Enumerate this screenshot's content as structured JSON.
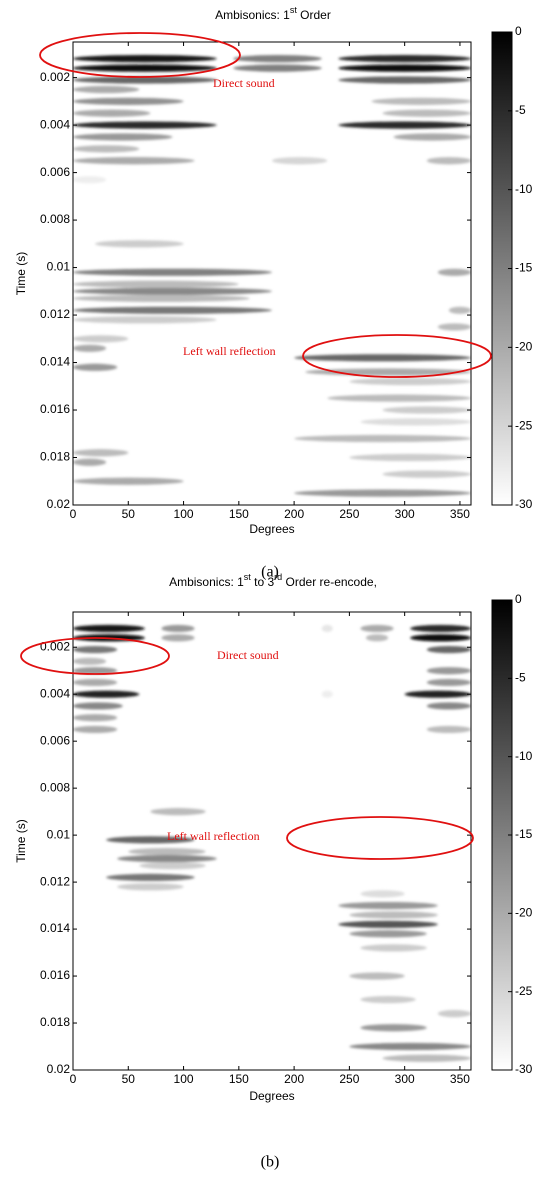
{
  "chart_data": [
    {
      "type": "heatmap",
      "title": [
        "Ambisonics: 1",
        "st",
        " Order"
      ],
      "x_label": "Degrees",
      "y_label": "Time (s)",
      "caption": "(a)",
      "xlim": [
        0,
        360
      ],
      "xticks": [
        0,
        50,
        100,
        150,
        200,
        250,
        300,
        350
      ],
      "ylim": [
        0.0005,
        0.02
      ],
      "yticks": [
        0.002,
        0.004,
        0.006,
        0.008,
        0.01,
        0.012,
        0.014,
        0.016,
        0.018,
        0.02
      ],
      "clim": [
        -30,
        0
      ],
      "cticks": [
        0,
        -5,
        -10,
        -15,
        -20,
        -25,
        -30
      ],
      "colormap": "gray",
      "annotations": [
        "Direct sound",
        "Left wall reflection"
      ],
      "streaks": [
        {
          "time": 0.0012,
          "degrees": [
            0,
            130
          ],
          "value": -3
        },
        {
          "time": 0.0016,
          "degrees": [
            0,
            130
          ],
          "value": -1
        },
        {
          "time": 0.0012,
          "degrees": [
            145,
            225
          ],
          "value": -15
        },
        {
          "time": 0.0016,
          "degrees": [
            145,
            225
          ],
          "value": -15
        },
        {
          "time": 0.0012,
          "degrees": [
            240,
            360
          ],
          "value": -5
        },
        {
          "time": 0.0016,
          "degrees": [
            240,
            360
          ],
          "value": -1
        },
        {
          "time": 0.0021,
          "degrees": [
            0,
            130
          ],
          "value": -12
        },
        {
          "time": 0.0021,
          "degrees": [
            240,
            360
          ],
          "value": -12
        },
        {
          "time": 0.0025,
          "degrees": [
            0,
            60
          ],
          "value": -20
        },
        {
          "time": 0.003,
          "degrees": [
            0,
            100
          ],
          "value": -17
        },
        {
          "time": 0.003,
          "degrees": [
            270,
            360
          ],
          "value": -22
        },
        {
          "time": 0.0035,
          "degrees": [
            0,
            70
          ],
          "value": -20
        },
        {
          "time": 0.0035,
          "degrees": [
            280,
            360
          ],
          "value": -22
        },
        {
          "time": 0.004,
          "degrees": [
            0,
            130
          ],
          "value": -5
        },
        {
          "time": 0.004,
          "degrees": [
            240,
            360
          ],
          "value": -5
        },
        {
          "time": 0.0045,
          "degrees": [
            0,
            90
          ],
          "value": -18
        },
        {
          "time": 0.0045,
          "degrees": [
            290,
            360
          ],
          "value": -20
        },
        {
          "time": 0.005,
          "degrees": [
            0,
            60
          ],
          "value": -22
        },
        {
          "time": 0.0055,
          "degrees": [
            0,
            110
          ],
          "value": -20
        },
        {
          "time": 0.0055,
          "degrees": [
            180,
            230
          ],
          "value": -25
        },
        {
          "time": 0.0055,
          "degrees": [
            320,
            360
          ],
          "value": -22
        },
        {
          "time": 0.0063,
          "degrees": [
            0,
            30
          ],
          "value": -28
        },
        {
          "time": 0.009,
          "degrees": [
            20,
            100
          ],
          "value": -24
        },
        {
          "time": 0.0102,
          "degrees": [
            0,
            180
          ],
          "value": -15
        },
        {
          "time": 0.0107,
          "degrees": [
            0,
            150
          ],
          "value": -22
        },
        {
          "time": 0.011,
          "degrees": [
            0,
            180
          ],
          "value": -16
        },
        {
          "time": 0.0113,
          "degrees": [
            0,
            160
          ],
          "value": -22
        },
        {
          "time": 0.0118,
          "degrees": [
            0,
            180
          ],
          "value": -14
        },
        {
          "time": 0.0122,
          "degrees": [
            0,
            130
          ],
          "value": -24
        },
        {
          "time": 0.0102,
          "degrees": [
            330,
            360
          ],
          "value": -20
        },
        {
          "time": 0.0118,
          "degrees": [
            340,
            360
          ],
          "value": -22
        },
        {
          "time": 0.0125,
          "degrees": [
            330,
            360
          ],
          "value": -22
        },
        {
          "time": 0.013,
          "degrees": [
            0,
            50
          ],
          "value": -24
        },
        {
          "time": 0.0134,
          "degrees": [
            0,
            30
          ],
          "value": -20
        },
        {
          "time": 0.0138,
          "degrees": [
            200,
            360
          ],
          "value": -12
        },
        {
          "time": 0.0142,
          "degrees": [
            0,
            40
          ],
          "value": -18
        },
        {
          "time": 0.0144,
          "degrees": [
            210,
            360
          ],
          "value": -20
        },
        {
          "time": 0.0148,
          "degrees": [
            250,
            360
          ],
          "value": -24
        },
        {
          "time": 0.0155,
          "degrees": [
            230,
            360
          ],
          "value": -22
        },
        {
          "time": 0.016,
          "degrees": [
            280,
            360
          ],
          "value": -24
        },
        {
          "time": 0.0165,
          "degrees": [
            260,
            360
          ],
          "value": -26
        },
        {
          "time": 0.0172,
          "degrees": [
            200,
            360
          ],
          "value": -22
        },
        {
          "time": 0.0178,
          "degrees": [
            0,
            50
          ],
          "value": -22
        },
        {
          "time": 0.018,
          "degrees": [
            250,
            360
          ],
          "value": -24
        },
        {
          "time": 0.0182,
          "degrees": [
            0,
            30
          ],
          "value": -20
        },
        {
          "time": 0.0187,
          "degrees": [
            280,
            360
          ],
          "value": -24
        },
        {
          "time": 0.019,
          "degrees": [
            0,
            100
          ],
          "value": -20
        },
        {
          "time": 0.0195,
          "degrees": [
            200,
            360
          ],
          "value": -18
        }
      ]
    },
    {
      "type": "heatmap",
      "title": [
        "Ambisonics: 1",
        "st",
        " to 3",
        "rd",
        " Order re-encode,"
      ],
      "x_label": "Degrees",
      "y_label": "Time (s)",
      "caption": "(b)",
      "xlim": [
        0,
        360
      ],
      "xticks": [
        0,
        50,
        100,
        150,
        200,
        250,
        300,
        350
      ],
      "ylim": [
        0.0005,
        0.02
      ],
      "yticks": [
        0.002,
        0.004,
        0.006,
        0.008,
        0.01,
        0.012,
        0.014,
        0.016,
        0.018,
        0.02
      ],
      "clim": [
        -30,
        0
      ],
      "cticks": [
        0,
        -5,
        -10,
        -15,
        -20,
        -25,
        -30
      ],
      "colormap": "gray",
      "annotations": [
        "Direct sound",
        "Left wall reflection"
      ],
      "streaks": [
        {
          "time": 0.0012,
          "degrees": [
            0,
            65
          ],
          "value": -3
        },
        {
          "time": 0.0016,
          "degrees": [
            0,
            65
          ],
          "value": -1
        },
        {
          "time": 0.0012,
          "degrees": [
            80,
            110
          ],
          "value": -18
        },
        {
          "time": 0.0016,
          "degrees": [
            80,
            110
          ],
          "value": -20
        },
        {
          "time": 0.0012,
          "degrees": [
            260,
            290
          ],
          "value": -20
        },
        {
          "time": 0.0016,
          "degrees": [
            265,
            285
          ],
          "value": -22
        },
        {
          "time": 0.0012,
          "degrees": [
            225,
            235
          ],
          "value": -27
        },
        {
          "time": 0.0012,
          "degrees": [
            305,
            360
          ],
          "value": -5
        },
        {
          "time": 0.0016,
          "degrees": [
            305,
            360
          ],
          "value": -1
        },
        {
          "time": 0.0021,
          "degrees": [
            0,
            40
          ],
          "value": -14
        },
        {
          "time": 0.0021,
          "degrees": [
            320,
            360
          ],
          "value": -12
        },
        {
          "time": 0.0026,
          "degrees": [
            0,
            30
          ],
          "value": -22
        },
        {
          "time": 0.003,
          "degrees": [
            0,
            40
          ],
          "value": -18
        },
        {
          "time": 0.003,
          "degrees": [
            320,
            360
          ],
          "value": -18
        },
        {
          "time": 0.0035,
          "degrees": [
            0,
            40
          ],
          "value": -20
        },
        {
          "time": 0.0035,
          "degrees": [
            320,
            360
          ],
          "value": -18
        },
        {
          "time": 0.004,
          "degrees": [
            0,
            60
          ],
          "value": -4
        },
        {
          "time": 0.004,
          "degrees": [
            300,
            360
          ],
          "value": -4
        },
        {
          "time": 0.004,
          "degrees": [
            225,
            235
          ],
          "value": -28
        },
        {
          "time": 0.0045,
          "degrees": [
            0,
            45
          ],
          "value": -16
        },
        {
          "time": 0.0045,
          "degrees": [
            320,
            360
          ],
          "value": -16
        },
        {
          "time": 0.005,
          "degrees": [
            0,
            40
          ],
          "value": -20
        },
        {
          "time": 0.0055,
          "degrees": [
            0,
            40
          ],
          "value": -20
        },
        {
          "time": 0.0055,
          "degrees": [
            320,
            360
          ],
          "value": -22
        },
        {
          "time": 0.009,
          "degrees": [
            70,
            120
          ],
          "value": -22
        },
        {
          "time": 0.0102,
          "degrees": [
            30,
            110
          ],
          "value": -12
        },
        {
          "time": 0.0107,
          "degrees": [
            50,
            120
          ],
          "value": -22
        },
        {
          "time": 0.011,
          "degrees": [
            40,
            130
          ],
          "value": -16
        },
        {
          "time": 0.0113,
          "degrees": [
            60,
            120
          ],
          "value": -24
        },
        {
          "time": 0.0118,
          "degrees": [
            30,
            110
          ],
          "value": -14
        },
        {
          "time": 0.0122,
          "degrees": [
            40,
            100
          ],
          "value": -24
        },
        {
          "time": 0.0125,
          "degrees": [
            260,
            300
          ],
          "value": -26
        },
        {
          "time": 0.013,
          "degrees": [
            240,
            330
          ],
          "value": -18
        },
        {
          "time": 0.0134,
          "degrees": [
            250,
            330
          ],
          "value": -22
        },
        {
          "time": 0.0138,
          "degrees": [
            240,
            330
          ],
          "value": -10
        },
        {
          "time": 0.0142,
          "degrees": [
            250,
            320
          ],
          "value": -18
        },
        {
          "time": 0.0148,
          "degrees": [
            260,
            320
          ],
          "value": -24
        },
        {
          "time": 0.016,
          "degrees": [
            250,
            300
          ],
          "value": -22
        },
        {
          "time": 0.017,
          "degrees": [
            260,
            310
          ],
          "value": -24
        },
        {
          "time": 0.0176,
          "degrees": [
            330,
            360
          ],
          "value": -24
        },
        {
          "time": 0.0182,
          "degrees": [
            260,
            320
          ],
          "value": -18
        },
        {
          "time": 0.019,
          "degrees": [
            250,
            360
          ],
          "value": -16
        },
        {
          "time": 0.0195,
          "degrees": [
            280,
            360
          ],
          "value": -22
        }
      ]
    }
  ]
}
